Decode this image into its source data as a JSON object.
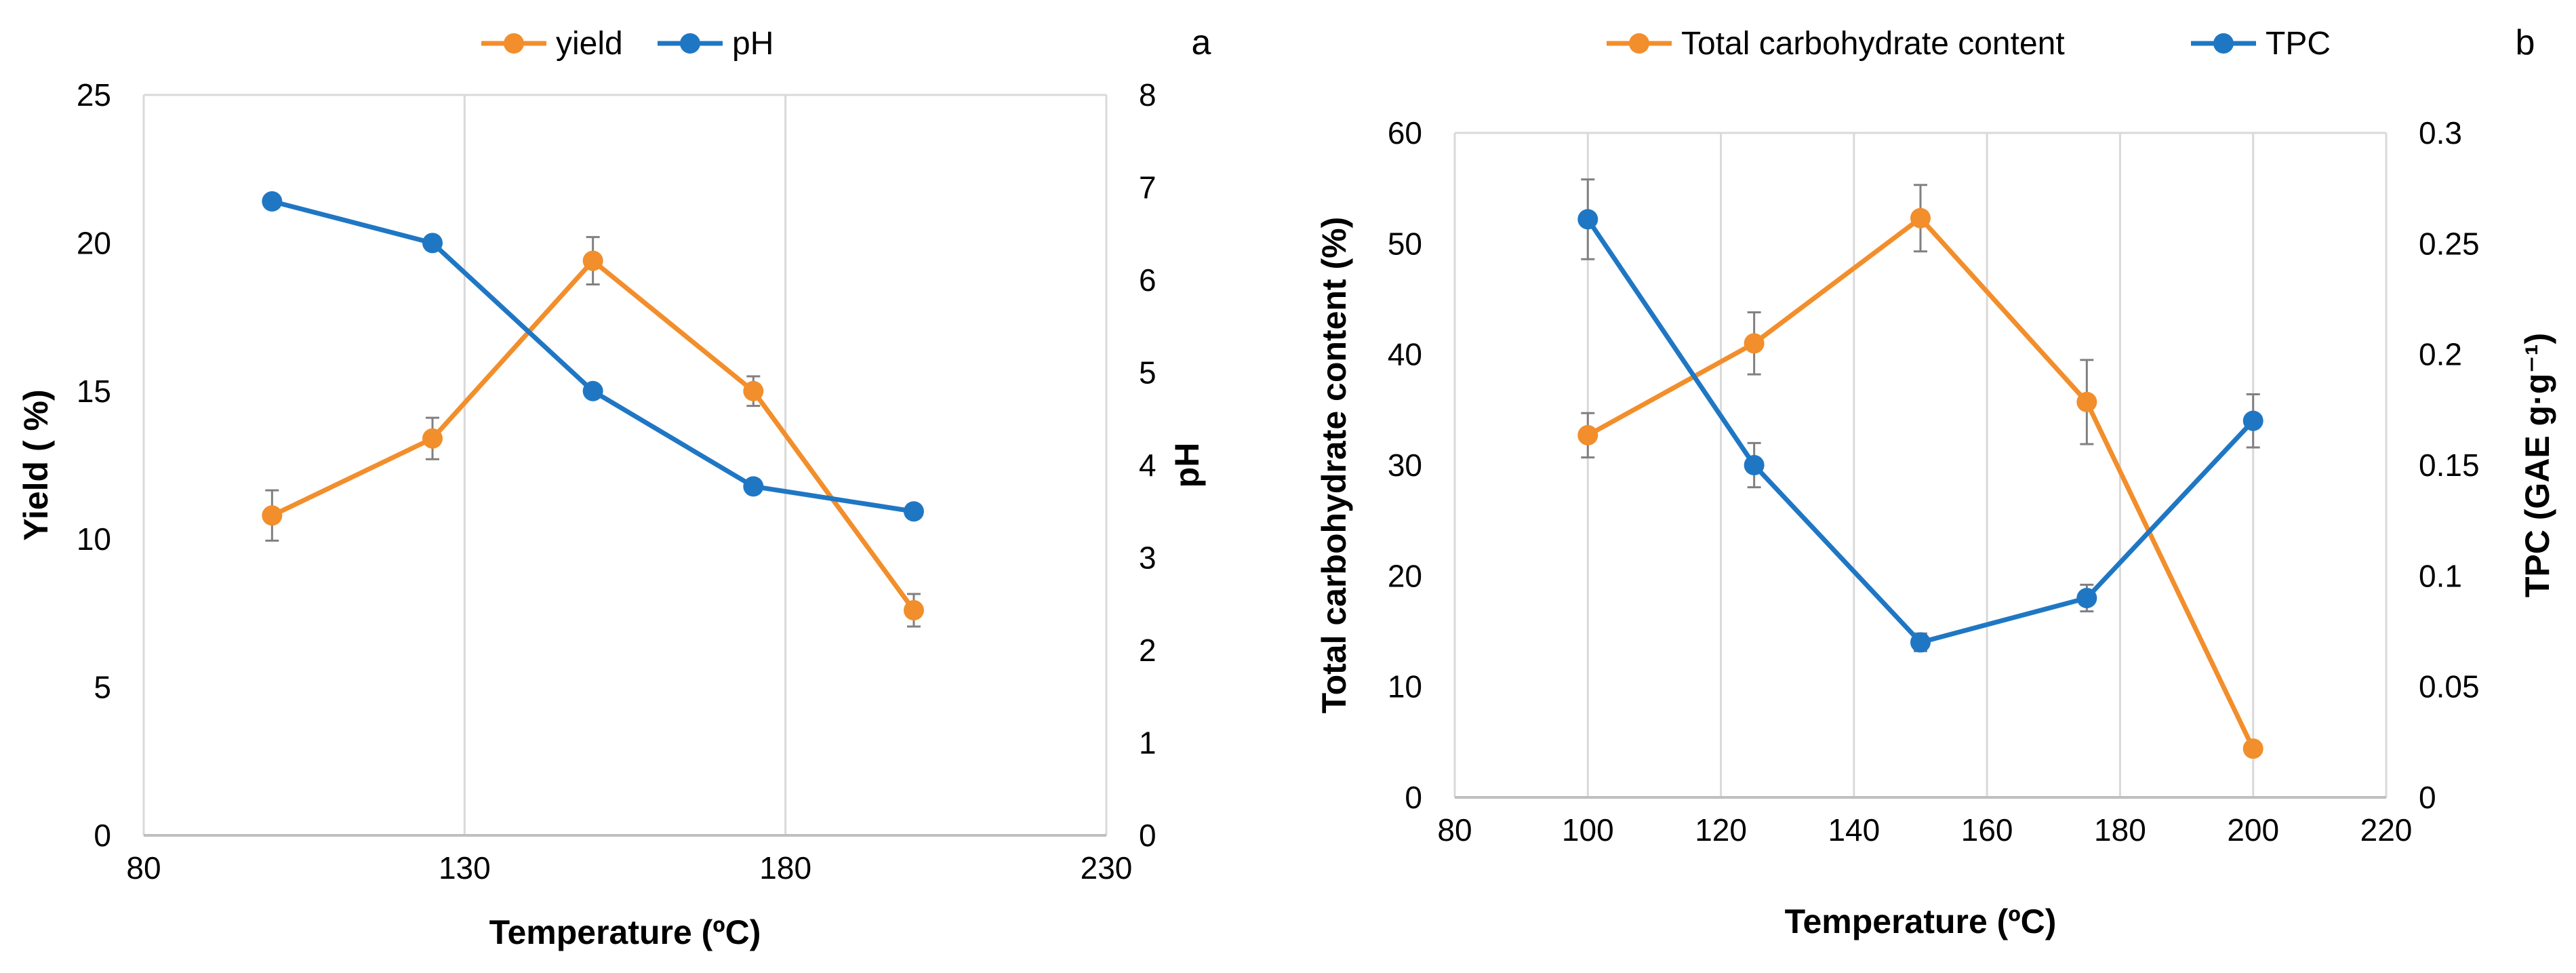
{
  "colors": {
    "orange": "#F28E2B",
    "blue": "#1F77C4",
    "grid": "#D9D9D9",
    "axis": "#BFBFBF",
    "errorbar": "#808080"
  },
  "chart_data": [
    {
      "type": "line",
      "panel": "a",
      "title": "",
      "xlabel": "Temperature (ºC)",
      "ylabel": "Yield ( %)",
      "y2label": "pH",
      "xlim": [
        80,
        230
      ],
      "ylim": [
        0,
        25
      ],
      "y2lim": [
        0,
        8
      ],
      "xticks": [
        "80",
        "130",
        "180",
        "230"
      ],
      "yticks": [
        "0",
        "5",
        "10",
        "15",
        "20",
        "25"
      ],
      "y2ticks": [
        "0",
        "1",
        "2",
        "3",
        "4",
        "5",
        "6",
        "7",
        "8"
      ],
      "grid": "vertical",
      "legend_position": "top-center",
      "series": [
        {
          "name": "yield",
          "axis": "left",
          "color": "orange",
          "x": [
            100,
            125,
            150,
            175,
            200
          ],
          "y": [
            10.8,
            13.4,
            19.4,
            15.0,
            7.6
          ],
          "err": [
            0.85,
            0.7,
            0.8,
            0.5,
            0.55
          ]
        },
        {
          "name": "pH",
          "axis": "right",
          "color": "blue",
          "x": [
            100,
            125,
            150,
            175,
            200
          ],
          "y": [
            6.85,
            6.4,
            4.8,
            3.77,
            3.5
          ],
          "err": []
        }
      ]
    },
    {
      "type": "line",
      "panel": "b",
      "title": "",
      "xlabel": "Temperature (ºC)",
      "ylabel": "Total carbohydrate content (%)",
      "y2label": "TPC (GAE g·g⁻¹)",
      "xlim": [
        80,
        220
      ],
      "ylim": [
        0,
        60
      ],
      "y2lim": [
        0,
        0.3
      ],
      "xticks": [
        "80",
        "100",
        "120",
        "140",
        "160",
        "180",
        "200",
        "220"
      ],
      "yticks": [
        "0",
        "10",
        "20",
        "30",
        "40",
        "50",
        "60"
      ],
      "y2ticks": [
        "0",
        "0.05",
        "0.1",
        "0.15",
        "0.2",
        "0.25",
        "0.3"
      ],
      "grid": "vertical",
      "legend_position": "top-center",
      "series": [
        {
          "name": "Total carbohydrate content",
          "axis": "left",
          "color": "orange",
          "x": [
            100,
            125,
            150,
            175,
            200
          ],
          "y": [
            32.7,
            41.0,
            52.3,
            35.7,
            4.4
          ],
          "err": [
            2.0,
            2.8,
            3.0,
            3.8,
            0
          ]
        },
        {
          "name": "TPC",
          "axis": "right",
          "color": "blue",
          "x": [
            100,
            125,
            150,
            175,
            200
          ],
          "y": [
            0.261,
            0.15,
            0.07,
            0.09,
            0.17
          ],
          "err": [
            0.018,
            0.01,
            0.004,
            0.006,
            0.012
          ]
        }
      ]
    }
  ]
}
